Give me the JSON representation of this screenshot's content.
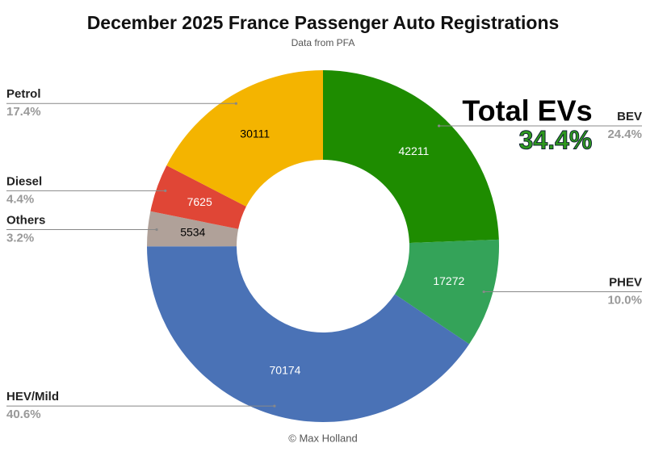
{
  "chart_data": {
    "type": "donut",
    "title": "December 2025 France Passenger Auto Registrations",
    "subtitle": "Data from PFA",
    "footer": "© Max Holland",
    "categories": [
      "BEV",
      "PHEV",
      "HEV/Mild",
      "Others",
      "Diesel",
      "Petrol"
    ],
    "values": [
      42211,
      17272,
      70174,
      5534,
      7625,
      30111
    ],
    "percent_labels": [
      "24.4%",
      "10.0%",
      "40.6%",
      "3.2%",
      "4.4%",
      "17.4%"
    ],
    "colors": [
      "#1e8c00",
      "#34a359",
      "#4a72b6",
      "#b0a199",
      "#e04636",
      "#f4b400"
    ],
    "text_colors": [
      "#ffffff",
      "#ffffff",
      "#ffffff",
      "#000000",
      "#ffffff",
      "#000000"
    ],
    "annotation": {
      "title": "Total EVs",
      "value": "34.4%",
      "color": "#2e9a1e"
    }
  }
}
